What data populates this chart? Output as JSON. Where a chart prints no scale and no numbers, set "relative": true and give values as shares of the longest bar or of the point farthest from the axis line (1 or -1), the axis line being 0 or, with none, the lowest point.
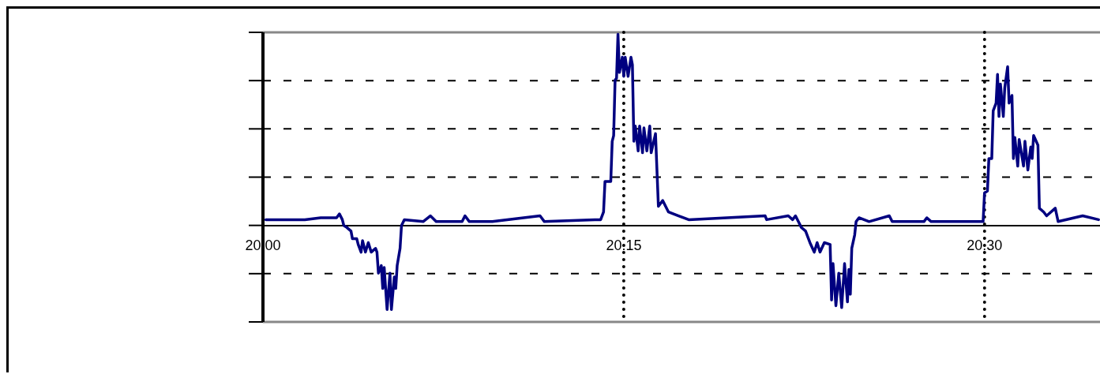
{
  "chart_data": {
    "type": "line",
    "relative": true,
    "xlim": [
      20,
      20.348
    ],
    "xticks": [
      {
        "value": 20,
        "label": "20.00"
      },
      {
        "value": 20.15,
        "label": "20.15"
      },
      {
        "value": 20.3,
        "label": "20.30"
      }
    ],
    "grid": "y",
    "legend": false,
    "marker": "none",
    "line_style": "solid",
    "ref_lines": [
      {
        "axis": "x",
        "value": 20.15,
        "color": "#000000",
        "line_style": "dotted"
      },
      {
        "axis": "x",
        "value": 20.3,
        "color": "#000000",
        "line_style": "dotted"
      }
    ],
    "series": [
      {
        "color": "#000080",
        "x": [
          20.0012,
          20.0174,
          20.024,
          20.0306,
          20.0318,
          20.033,
          20.0336,
          20.0348,
          20.0366,
          20.0372,
          20.039,
          20.0396,
          20.0408,
          20.0414,
          20.0426,
          20.0438,
          20.045,
          20.0468,
          20.0474,
          20.048,
          20.0492,
          20.0498,
          20.0504,
          20.0516,
          20.0528,
          20.0534,
          20.0546,
          20.0552,
          20.0558,
          20.057,
          20.0576,
          20.0588,
          20.0666,
          20.0696,
          20.072,
          20.0828,
          20.084,
          20.0858,
          20.0954,
          20.1152,
          20.117,
          20.138,
          20.1404,
          20.1416,
          20.1422,
          20.1446,
          20.1452,
          20.1458,
          20.1464,
          20.147,
          20.1476,
          20.1482,
          20.1494,
          20.15,
          20.1506,
          20.1518,
          20.153,
          20.1536,
          20.1542,
          20.1548,
          20.156,
          20.1566,
          20.1578,
          20.1584,
          20.1596,
          20.1608,
          20.1614,
          20.1632,
          20.1644,
          20.1662,
          20.1686,
          20.1728,
          20.177,
          20.2088,
          20.2094,
          20.2184,
          20.2202,
          20.2214,
          20.2226,
          20.2238,
          20.2256,
          20.2274,
          20.2292,
          20.2304,
          20.2316,
          20.2334,
          20.2358,
          20.2364,
          20.237,
          20.2382,
          20.2394,
          20.2406,
          20.2418,
          20.243,
          20.2436,
          20.2442,
          20.2448,
          20.246,
          20.2466,
          20.2478,
          20.252,
          20.2604,
          20.2616,
          20.2748,
          20.276,
          20.2778,
          20.291,
          20.2994,
          20.3,
          20.3012,
          20.3018,
          20.303,
          20.3036,
          20.3048,
          20.3054,
          20.306,
          20.3066,
          20.3078,
          20.3084,
          20.3096,
          20.3102,
          20.3114,
          20.312,
          20.3126,
          20.3138,
          20.3144,
          20.3162,
          20.3168,
          20.318,
          20.3192,
          20.3198,
          20.3204,
          20.3222,
          20.3228,
          20.3246,
          20.3258,
          20.3294,
          20.3306,
          20.3408,
          20.3474
        ],
        "values": [
          0.03,
          0.03,
          0.04,
          0.04,
          0.06,
          0.03,
          0,
          -0.01,
          -0.03,
          -0.07,
          -0.07,
          -0.1,
          -0.14,
          -0.08,
          -0.14,
          -0.09,
          -0.14,
          -0.12,
          -0.14,
          -0.25,
          -0.21,
          -0.33,
          -0.22,
          -0.44,
          -0.25,
          -0.44,
          -0.27,
          -0.33,
          -0.21,
          -0.12,
          0,
          0.03,
          0.02,
          0.05,
          0.02,
          0.02,
          0.05,
          0.02,
          0.02,
          0.05,
          0.02,
          0.03,
          0.03,
          0.07,
          0.23,
          0.23,
          0.44,
          0.47,
          0.76,
          0.77,
          1,
          0.8,
          0.88,
          0.78,
          0.88,
          0.78,
          0.88,
          0.84,
          0.44,
          0.52,
          0.39,
          0.52,
          0.38,
          0.51,
          0.39,
          0.52,
          0.38,
          0.48,
          0.1,
          0.13,
          0.07,
          0.05,
          0.03,
          0.05,
          0.03,
          0.05,
          0.03,
          0.05,
          0.02,
          -0.01,
          -0.03,
          -0.09,
          -0.14,
          -0.09,
          -0.14,
          -0.09,
          -0.1,
          -0.39,
          -0.2,
          -0.42,
          -0.25,
          -0.43,
          -0.2,
          -0.4,
          -0.23,
          -0.36,
          -0.12,
          -0.05,
          0.02,
          0.04,
          0.02,
          0.05,
          0.02,
          0.02,
          0.04,
          0.02,
          0.02,
          0.02,
          0.17,
          0.18,
          0.35,
          0.35,
          0.6,
          0.64,
          0.79,
          0.57,
          0.74,
          0.57,
          0.72,
          0.83,
          0.64,
          0.68,
          0.35,
          0.46,
          0.31,
          0.45,
          0.31,
          0.44,
          0.29,
          0.41,
          0.35,
          0.47,
          0.42,
          0.09,
          0.07,
          0.05,
          0.09,
          0.02,
          0.05,
          0.03
        ]
      }
    ]
  }
}
